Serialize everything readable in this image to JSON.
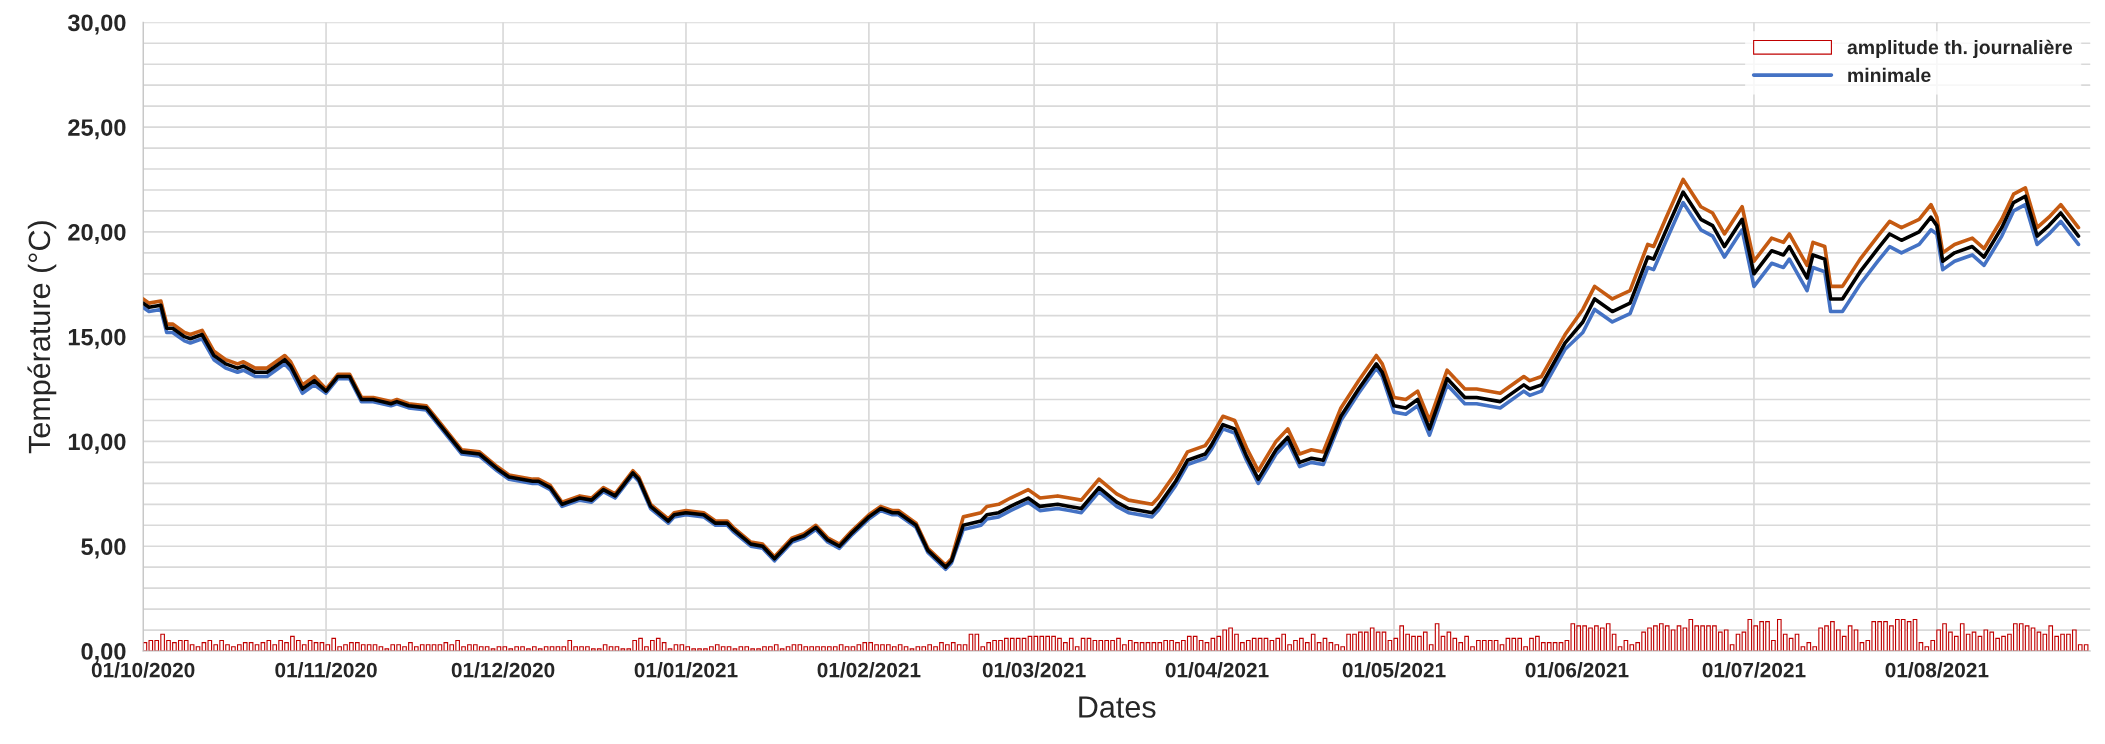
{
  "chart_data": {
    "type": "line",
    "xlabel": "Dates",
    "ylabel": "Température (°C)",
    "xlim": [
      "2020-10-01",
      "2021-08-27"
    ],
    "xticks": [
      {
        "value": "2020-10-01",
        "label": "01/10/2020"
      },
      {
        "value": "2020-11-01",
        "label": "01/11/2020"
      },
      {
        "value": "2020-12-01",
        "label": "01/12/2020"
      },
      {
        "value": "2021-01-01",
        "label": "01/01/2021"
      },
      {
        "value": "2021-02-01",
        "label": "01/02/2021"
      },
      {
        "value": "2021-03-01",
        "label": "01/03/2021"
      },
      {
        "value": "2021-04-01",
        "label": "01/04/2021"
      },
      {
        "value": "2021-05-01",
        "label": "01/05/2021"
      },
      {
        "value": "2021-06-01",
        "label": "01/06/2021"
      },
      {
        "value": "2021-07-01",
        "label": "01/07/2021"
      },
      {
        "value": "2021-08-01",
        "label": "01/08/2021"
      }
    ],
    "ylim": [
      0,
      30
    ],
    "yticks": [
      {
        "value": 0,
        "label": "0,00"
      },
      {
        "value": 1,
        "label": null
      },
      {
        "value": 2,
        "label": null
      },
      {
        "value": 3,
        "label": null
      },
      {
        "value": 4,
        "label": null
      },
      {
        "value": 5,
        "label": "5,00"
      },
      {
        "value": 6,
        "label": null
      },
      {
        "value": 7,
        "label": null
      },
      {
        "value": 8,
        "label": null
      },
      {
        "value": 9,
        "label": null
      },
      {
        "value": 10,
        "label": "10,00"
      },
      {
        "value": 11,
        "label": null
      },
      {
        "value": 12,
        "label": null
      },
      {
        "value": 13,
        "label": null
      },
      {
        "value": 14,
        "label": null
      },
      {
        "value": 15,
        "label": "15,00"
      },
      {
        "value": 16,
        "label": null
      },
      {
        "value": 17,
        "label": null
      },
      {
        "value": 18,
        "label": null
      },
      {
        "value": 19,
        "label": null
      },
      {
        "value": 20,
        "label": "20,00"
      },
      {
        "value": 21,
        "label": null
      },
      {
        "value": 22,
        "label": null
      },
      {
        "value": 23,
        "label": null
      },
      {
        "value": 24,
        "label": null
      },
      {
        "value": 25,
        "label": "25,00"
      },
      {
        "value": 26,
        "label": null
      },
      {
        "value": 27,
        "label": null
      },
      {
        "value": 28,
        "label": null
      },
      {
        "value": 29,
        "label": null
      },
      {
        "value": 30,
        "label": "30,00"
      }
    ],
    "grid": true,
    "legend": "top right",
    "series": [
      {
        "name": "amplitude th. journalière",
        "type": "bar",
        "color": "#c00000",
        "x": [
          "2020-10-01",
          "2020-10-02",
          "2020-10-03",
          "2020-10-04",
          "2020-10-05",
          "2020-10-06",
          "2020-10-07",
          "2020-10-08",
          "2020-10-09",
          "2020-10-10",
          "2020-10-11",
          "2020-10-12",
          "2020-10-13",
          "2020-10-14",
          "2020-10-15",
          "2020-10-16",
          "2020-10-17",
          "2020-10-18",
          "2020-10-19",
          "2020-10-20",
          "2020-10-21",
          "2020-10-22",
          "2020-10-23",
          "2020-10-24",
          "2020-10-25",
          "2020-10-26",
          "2020-10-27",
          "2020-10-28",
          "2020-10-29",
          "2020-10-30",
          "2020-10-31",
          "2020-11-01",
          "2020-11-02",
          "2020-11-03",
          "2020-11-04",
          "2020-11-05",
          "2020-11-06",
          "2020-11-07",
          "2020-11-08",
          "2020-11-09",
          "2020-11-10",
          "2020-11-11",
          "2020-11-12",
          "2020-11-13",
          "2020-11-14",
          "2020-11-15",
          "2020-11-16",
          "2020-11-17",
          "2020-11-18",
          "2020-11-19",
          "2020-11-20",
          "2020-11-21",
          "2020-11-22",
          "2020-11-23",
          "2020-11-24",
          "2020-11-25",
          "2020-11-26",
          "2020-11-27",
          "2020-11-28",
          "2020-11-29",
          "2020-11-30",
          "2020-12-01",
          "2020-12-02",
          "2020-12-03",
          "2020-12-04",
          "2020-12-05",
          "2020-12-06",
          "2020-12-07",
          "2020-12-08",
          "2020-12-09",
          "2020-12-10",
          "2020-12-11",
          "2020-12-12",
          "2020-12-13",
          "2020-12-14",
          "2020-12-15",
          "2020-12-16",
          "2020-12-17",
          "2020-12-18",
          "2020-12-19",
          "2020-12-20",
          "2020-12-21",
          "2020-12-22",
          "2020-12-23",
          "2020-12-24",
          "2020-12-25",
          "2020-12-26",
          "2020-12-27",
          "2020-12-28",
          "2020-12-29",
          "2020-12-30",
          "2020-12-31",
          "2021-01-01",
          "2021-01-02",
          "2021-01-03",
          "2021-01-04",
          "2021-01-05",
          "2021-01-06",
          "2021-01-07",
          "2021-01-08",
          "2021-01-09",
          "2021-01-10",
          "2021-01-11",
          "2021-01-12",
          "2021-01-13",
          "2021-01-14",
          "2021-01-15",
          "2021-01-16",
          "2021-01-17",
          "2021-01-18",
          "2021-01-19",
          "2021-01-20",
          "2021-01-21",
          "2021-01-22",
          "2021-01-23",
          "2021-01-24",
          "2021-01-25",
          "2021-01-26",
          "2021-01-27",
          "2021-01-28",
          "2021-01-29",
          "2021-01-30",
          "2021-01-31",
          "2021-02-01",
          "2021-02-02",
          "2021-02-03",
          "2021-02-04",
          "2021-02-05",
          "2021-02-06",
          "2021-02-07",
          "2021-02-08",
          "2021-02-09",
          "2021-02-10",
          "2021-02-11",
          "2021-02-12",
          "2021-02-13",
          "2021-02-14",
          "2021-02-15",
          "2021-02-16",
          "2021-02-17",
          "2021-02-18",
          "2021-02-19",
          "2021-02-20",
          "2021-02-21",
          "2021-02-22",
          "2021-02-23",
          "2021-02-24",
          "2021-02-25",
          "2021-02-26",
          "2021-02-27",
          "2021-02-28",
          "2021-03-01",
          "2021-03-02",
          "2021-03-03",
          "2021-03-04",
          "2021-03-05",
          "2021-03-06",
          "2021-03-07",
          "2021-03-08",
          "2021-03-09",
          "2021-03-10",
          "2021-03-11",
          "2021-03-12",
          "2021-03-13",
          "2021-03-14",
          "2021-03-15",
          "2021-03-16",
          "2021-03-17",
          "2021-03-18",
          "2021-03-19",
          "2021-03-20",
          "2021-03-21",
          "2021-03-22",
          "2021-03-23",
          "2021-03-24",
          "2021-03-25",
          "2021-03-26",
          "2021-03-27",
          "2021-03-28",
          "2021-03-29",
          "2021-03-30",
          "2021-03-31",
          "2021-04-01",
          "2021-04-02",
          "2021-04-03",
          "2021-04-04",
          "2021-04-05",
          "2021-04-06",
          "2021-04-07",
          "2021-04-08",
          "2021-04-09",
          "2021-04-10",
          "2021-04-11",
          "2021-04-12",
          "2021-04-13",
          "2021-04-14",
          "2021-04-15",
          "2021-04-16",
          "2021-04-17",
          "2021-04-18",
          "2021-04-19",
          "2021-04-20",
          "2021-04-21",
          "2021-04-22",
          "2021-04-23",
          "2021-04-24",
          "2021-04-25",
          "2021-04-26",
          "2021-04-27",
          "2021-04-28",
          "2021-04-29",
          "2021-04-30",
          "2021-05-01",
          "2021-05-02",
          "2021-05-03",
          "2021-05-04",
          "2021-05-05",
          "2021-05-06",
          "2021-05-07",
          "2021-05-08",
          "2021-05-09",
          "2021-05-10",
          "2021-05-11",
          "2021-05-12",
          "2021-05-13",
          "2021-05-14",
          "2021-05-15",
          "2021-05-16",
          "2021-05-17",
          "2021-05-18",
          "2021-05-19",
          "2021-05-20",
          "2021-05-21",
          "2021-05-22",
          "2021-05-23",
          "2021-05-24",
          "2021-05-25",
          "2021-05-26",
          "2021-05-27",
          "2021-05-28",
          "2021-05-29",
          "2021-05-30",
          "2021-05-31",
          "2021-06-01",
          "2021-06-02",
          "2021-06-03",
          "2021-06-04",
          "2021-06-05",
          "2021-06-06",
          "2021-06-07",
          "2021-06-08",
          "2021-06-09",
          "2021-06-10",
          "2021-06-11",
          "2021-06-12",
          "2021-06-13",
          "2021-06-14",
          "2021-06-15",
          "2021-06-16",
          "2021-06-17",
          "2021-06-18",
          "2021-06-19",
          "2021-06-20",
          "2021-06-21",
          "2021-06-22",
          "2021-06-23",
          "2021-06-24",
          "2021-06-25",
          "2021-06-26",
          "2021-06-27",
          "2021-06-28",
          "2021-06-29",
          "2021-06-30",
          "2021-07-01",
          "2021-07-02",
          "2021-07-03",
          "2021-07-04",
          "2021-07-05",
          "2021-07-06",
          "2021-07-07",
          "2021-07-08",
          "2021-07-09",
          "2021-07-10",
          "2021-07-11",
          "2021-07-12",
          "2021-07-13",
          "2021-07-14",
          "2021-07-15",
          "2021-07-16",
          "2021-07-17",
          "2021-07-18",
          "2021-07-19",
          "2021-07-20",
          "2021-07-21",
          "2021-07-22",
          "2021-07-23",
          "2021-07-24",
          "2021-07-25",
          "2021-07-26",
          "2021-07-27",
          "2021-07-28",
          "2021-07-29",
          "2021-07-30",
          "2021-07-31",
          "2021-08-01",
          "2021-08-02",
          "2021-08-03",
          "2021-08-04",
          "2021-08-05",
          "2021-08-06",
          "2021-08-07",
          "2021-08-08",
          "2021-08-09",
          "2021-08-10",
          "2021-08-11",
          "2021-08-12",
          "2021-08-13",
          "2021-08-14",
          "2021-08-15",
          "2021-08-16",
          "2021-08-17",
          "2021-08-18",
          "2021-08-19",
          "2021-08-20",
          "2021-08-21",
          "2021-08-22",
          "2021-08-23",
          "2021-08-24",
          "2021-08-25",
          "2021-08-26"
        ],
        "values": [
          0.4,
          0.5,
          0.5,
          0.8,
          0.5,
          0.4,
          0.5,
          0.5,
          0.3,
          0.2,
          0.4,
          0.5,
          0.3,
          0.5,
          0.3,
          0.2,
          0.3,
          0.4,
          0.4,
          0.3,
          0.4,
          0.5,
          0.3,
          0.5,
          0.4,
          0.7,
          0.5,
          0.3,
          0.5,
          0.4,
          0.4,
          0.3,
          0.6,
          0.2,
          0.3,
          0.4,
          0.4,
          0.3,
          0.3,
          0.3,
          0.2,
          0.1,
          0.3,
          0.3,
          0.2,
          0.4,
          0.2,
          0.3,
          0.3,
          0.3,
          0.3,
          0.4,
          0.3,
          0.5,
          0.2,
          0.3,
          0.3,
          0.2,
          0.2,
          0.1,
          0.2,
          0.2,
          0.1,
          0.2,
          0.2,
          0.1,
          0.2,
          0.1,
          0.2,
          0.2,
          0.2,
          0.2,
          0.5,
          0.2,
          0.2,
          0.2,
          0.1,
          0.1,
          0.3,
          0.2,
          0.2,
          0.1,
          0.1,
          0.5,
          0.6,
          0.2,
          0.5,
          0.6,
          0.4,
          0.1,
          0.3,
          0.3,
          0.2,
          0.1,
          0.1,
          0.1,
          0.2,
          0.3,
          0.2,
          0.2,
          0.1,
          0.2,
          0.2,
          0.1,
          0.1,
          0.2,
          0.2,
          0.3,
          0.1,
          0.2,
          0.3,
          0.3,
          0.2,
          0.2,
          0.2,
          0.2,
          0.2,
          0.2,
          0.3,
          0.2,
          0.2,
          0.3,
          0.4,
          0.4,
          0.3,
          0.3,
          0.3,
          0.2,
          0.3,
          0.2,
          0.1,
          0.2,
          0.2,
          0.3,
          0.2,
          0.4,
          0.3,
          0.4,
          0.3,
          0.3,
          0.8,
          0.8,
          0.2,
          0.4,
          0.5,
          0.5,
          0.6,
          0.6,
          0.6,
          0.6,
          0.7,
          0.7,
          0.7,
          0.7,
          0.7,
          0.6,
          0.4,
          0.6,
          0.2,
          0.6,
          0.6,
          0.5,
          0.5,
          0.5,
          0.5,
          0.6,
          0.3,
          0.5,
          0.4,
          0.4,
          0.4,
          0.4,
          0.4,
          0.5,
          0.5,
          0.4,
          0.5,
          0.7,
          0.7,
          0.5,
          0.4,
          0.6,
          0.7,
          1.0,
          1.1,
          0.8,
          0.4,
          0.5,
          0.6,
          0.6,
          0.6,
          0.5,
          0.6,
          0.8,
          0.3,
          0.5,
          0.6,
          0.4,
          0.8,
          0.4,
          0.6,
          0.4,
          0.3,
          0.2,
          0.8,
          0.8,
          0.9,
          0.9,
          1.1,
          0.9,
          0.9,
          0.5,
          0.6,
          1.2,
          0.8,
          0.7,
          0.7,
          0.9,
          0.3,
          1.3,
          0.7,
          0.9,
          0.6,
          0.4,
          0.7,
          0.2,
          0.5,
          0.5,
          0.5,
          0.5,
          0.3,
          0.6,
          0.6,
          0.6,
          0.2,
          0.6,
          0.7,
          0.4,
          0.4,
          0.4,
          0.4,
          0.5,
          1.3,
          1.2,
          1.2,
          1.1,
          1.2,
          1.1,
          1.3,
          0.8,
          0.2,
          0.5,
          0.3,
          0.4,
          0.9,
          1.1,
          1.2,
          1.3,
          1.2,
          1.0,
          1.2,
          1.1,
          1.5,
          1.2,
          1.2,
          1.2,
          1.2,
          0.9,
          1.0,
          0.3,
          0.8,
          0.9,
          1.5,
          1.2,
          1.4,
          1.4,
          0.5,
          1.5,
          0.8,
          0.6,
          0.8,
          0.2,
          0.4,
          0.2,
          1.1,
          1.2,
          1.4,
          1.0,
          0.7,
          1.2,
          1.0,
          0.4,
          0.5,
          1.4,
          1.4,
          1.4,
          1.2,
          1.5,
          1.5,
          1.4,
          1.5,
          0.4,
          0.2,
          0.5,
          1.0,
          1.3,
          0.9,
          0.7,
          1.3,
          0.8,
          0.9,
          0.7,
          1.0,
          0.9,
          0.6,
          0.7,
          0.8,
          1.3,
          1.3,
          1.2,
          1.1,
          0.9,
          0.8,
          1.2,
          0.7,
          0.8,
          0.8,
          1.0,
          0.3,
          0.3
        ]
      },
      {
        "color": "#c55a11",
        "x": [
          "2020-10-01",
          "2020-10-02",
          "2020-10-04",
          "2020-10-05",
          "2020-10-06",
          "2020-10-08",
          "2020-10-09",
          "2020-10-11",
          "2020-10-13",
          "2020-10-15",
          "2020-10-17",
          "2020-10-18",
          "2020-10-20",
          "2020-10-22",
          "2020-10-25",
          "2020-10-26",
          "2020-10-28",
          "2020-10-30",
          "2020-11-01",
          "2020-11-03",
          "2020-11-05",
          "2020-11-07",
          "2020-11-09",
          "2020-11-12",
          "2020-11-13",
          "2020-11-15",
          "2020-11-18",
          "2020-11-20",
          "2020-11-24",
          "2020-11-27",
          "2020-11-30",
          "2020-12-02",
          "2020-12-06",
          "2020-12-07",
          "2020-12-09",
          "2020-12-11",
          "2020-12-14",
          "2020-12-16",
          "2020-12-18",
          "2020-12-20",
          "2020-12-23",
          "2020-12-24",
          "2020-12-26",
          "2020-12-29",
          "2020-12-30",
          "2021-01-01",
          "2021-01-04",
          "2021-01-06",
          "2021-01-08",
          "2021-01-09",
          "2021-01-12",
          "2021-01-14",
          "2021-01-16",
          "2021-01-19",
          "2021-01-21",
          "2021-01-23",
          "2021-01-25",
          "2021-01-27",
          "2021-01-29",
          "2021-02-01",
          "2021-02-03",
          "2021-02-05",
          "2021-02-06",
          "2021-02-09",
          "2021-02-11",
          "2021-02-14",
          "2021-02-15",
          "2021-02-17",
          "2021-02-20",
          "2021-02-21",
          "2021-02-23",
          "2021-02-25",
          "2021-02-28",
          "2021-03-02",
          "2021-03-05",
          "2021-03-07",
          "2021-03-09",
          "2021-03-12",
          "2021-03-15",
          "2021-03-17",
          "2021-03-21",
          "2021-03-22",
          "2021-03-25",
          "2021-03-27",
          "2021-03-30",
          "2021-03-31",
          "2021-04-02",
          "2021-04-04",
          "2021-04-06",
          "2021-04-08",
          "2021-04-11",
          "2021-04-13",
          "2021-04-15",
          "2021-04-17",
          "2021-04-19",
          "2021-04-22",
          "2021-04-25",
          "2021-04-28",
          "2021-04-29",
          "2021-05-01",
          "2021-05-03",
          "2021-05-05",
          "2021-05-07",
          "2021-05-10",
          "2021-05-13",
          "2021-05-15",
          "2021-05-19",
          "2021-05-23",
          "2021-05-24",
          "2021-05-26",
          "2021-05-30",
          "2021-06-02",
          "2021-06-04",
          "2021-06-07",
          "2021-06-10",
          "2021-06-13",
          "2021-06-14",
          "2021-06-16",
          "2021-06-19",
          "2021-06-22",
          "2021-06-24",
          "2021-06-26",
          "2021-06-29",
          "2021-07-01",
          "2021-07-04",
          "2021-07-06",
          "2021-07-07",
          "2021-07-10",
          "2021-07-11",
          "2021-07-13",
          "2021-07-14",
          "2021-07-16",
          "2021-07-19",
          "2021-07-22",
          "2021-07-24",
          "2021-07-26",
          "2021-07-29",
          "2021-07-31",
          "2021-08-01",
          "2021-08-02",
          "2021-08-04",
          "2021-08-07",
          "2021-08-09",
          "2021-08-12",
          "2021-08-14",
          "2021-08-16",
          "2021-08-18",
          "2021-08-20",
          "2021-08-22",
          "2021-08-25"
        ],
        "values": [
          16.8,
          16.6,
          16.7,
          15.6,
          15.6,
          15.2,
          15.1,
          15.3,
          14.3,
          13.9,
          13.7,
          13.8,
          13.5,
          13.5,
          14.1,
          13.8,
          12.7,
          13.1,
          12.5,
          13.2,
          13.2,
          12.1,
          12.1,
          11.9,
          12.0,
          11.8,
          11.7,
          11.0,
          9.6,
          9.5,
          8.8,
          8.4,
          8.2,
          8.2,
          7.9,
          7.1,
          7.4,
          7.3,
          7.8,
          7.5,
          8.6,
          8.3,
          7.0,
          6.3,
          6.6,
          6.7,
          6.6,
          6.2,
          6.2,
          5.9,
          5.2,
          5.1,
          4.5,
          5.4,
          5.6,
          6.0,
          5.4,
          5.1,
          5.7,
          6.5,
          6.9,
          6.7,
          6.7,
          6.1,
          4.9,
          4.1,
          4.4,
          6.4,
          6.6,
          6.9,
          7.0,
          7.3,
          7.7,
          7.3,
          7.4,
          7.3,
          7.2,
          8.2,
          7.5,
          7.2,
          7.0,
          7.3,
          8.5,
          9.5,
          9.8,
          10.2,
          11.2,
          11.0,
          9.7,
          8.6,
          10.0,
          10.6,
          9.4,
          9.6,
          9.5,
          11.6,
          12.9,
          14.1,
          13.7,
          12.1,
          12.0,
          12.4,
          11.0,
          13.4,
          12.5,
          12.5,
          12.3,
          13.1,
          12.9,
          13.1,
          15.1,
          16.3,
          17.4,
          16.8,
          17.2,
          19.4,
          19.3,
          20.6,
          22.5,
          21.2,
          20.9,
          19.9,
          21.2,
          18.6,
          19.7,
          19.5,
          19.9,
          18.4,
          19.5,
          19.3,
          17.4,
          17.4,
          18.7,
          19.8,
          20.5,
          20.2,
          20.6,
          21.3,
          20.7,
          19.0,
          19.4,
          19.7,
          19.2,
          20.6,
          21.8,
          22.1,
          20.2,
          20.7,
          21.3,
          20.2
        ]
      },
      {
        "name": "minimale",
        "color": "#4472c4",
        "x": [
          "2020-10-01",
          "2020-10-02",
          "2020-10-04",
          "2020-10-05",
          "2020-10-06",
          "2020-10-08",
          "2020-10-09",
          "2020-10-11",
          "2020-10-13",
          "2020-10-15",
          "2020-10-17",
          "2020-10-18",
          "2020-10-20",
          "2020-10-22",
          "2020-10-25",
          "2020-10-26",
          "2020-10-28",
          "2020-10-30",
          "2020-11-01",
          "2020-11-03",
          "2020-11-05",
          "2020-11-07",
          "2020-11-09",
          "2020-11-12",
          "2020-11-13",
          "2020-11-15",
          "2020-11-18",
          "2020-11-20",
          "2020-11-24",
          "2020-11-27",
          "2020-11-30",
          "2020-12-02",
          "2020-12-06",
          "2020-12-07",
          "2020-12-09",
          "2020-12-11",
          "2020-12-14",
          "2020-12-16",
          "2020-12-18",
          "2020-12-20",
          "2020-12-23",
          "2020-12-24",
          "2020-12-26",
          "2020-12-29",
          "2020-12-30",
          "2021-01-01",
          "2021-01-04",
          "2021-01-06",
          "2021-01-08",
          "2021-01-09",
          "2021-01-12",
          "2021-01-14",
          "2021-01-16",
          "2021-01-19",
          "2021-01-21",
          "2021-01-23",
          "2021-01-25",
          "2021-01-27",
          "2021-01-29",
          "2021-02-01",
          "2021-02-03",
          "2021-02-05",
          "2021-02-06",
          "2021-02-09",
          "2021-02-11",
          "2021-02-14",
          "2021-02-15",
          "2021-02-17",
          "2021-02-20",
          "2021-02-21",
          "2021-02-23",
          "2021-02-25",
          "2021-02-28",
          "2021-03-02",
          "2021-03-05",
          "2021-03-07",
          "2021-03-09",
          "2021-03-12",
          "2021-03-15",
          "2021-03-17",
          "2021-03-21",
          "2021-03-22",
          "2021-03-25",
          "2021-03-27",
          "2021-03-30",
          "2021-03-31",
          "2021-04-02",
          "2021-04-04",
          "2021-04-06",
          "2021-04-08",
          "2021-04-11",
          "2021-04-13",
          "2021-04-15",
          "2021-04-17",
          "2021-04-19",
          "2021-04-22",
          "2021-04-25",
          "2021-04-28",
          "2021-04-29",
          "2021-05-01",
          "2021-05-03",
          "2021-05-05",
          "2021-05-07",
          "2021-05-10",
          "2021-05-13",
          "2021-05-15",
          "2021-05-19",
          "2021-05-23",
          "2021-05-24",
          "2021-05-26",
          "2021-05-30",
          "2021-06-02",
          "2021-06-04",
          "2021-06-07",
          "2021-06-10",
          "2021-06-13",
          "2021-06-14",
          "2021-06-16",
          "2021-06-19",
          "2021-06-22",
          "2021-06-24",
          "2021-06-26",
          "2021-06-29",
          "2021-07-01",
          "2021-07-04",
          "2021-07-06",
          "2021-07-07",
          "2021-07-10",
          "2021-07-11",
          "2021-07-13",
          "2021-07-14",
          "2021-07-16",
          "2021-07-19",
          "2021-07-22",
          "2021-07-24",
          "2021-07-26",
          "2021-07-29",
          "2021-07-31",
          "2021-08-01",
          "2021-08-02",
          "2021-08-04",
          "2021-08-07",
          "2021-08-09",
          "2021-08-12",
          "2021-08-14",
          "2021-08-16",
          "2021-08-18",
          "2021-08-20",
          "2021-08-22",
          "2021-08-25"
        ],
        "values": [
          16.4,
          16.2,
          16.3,
          15.2,
          15.2,
          14.8,
          14.7,
          14.9,
          13.9,
          13.5,
          13.3,
          13.4,
          13.1,
          13.1,
          13.7,
          13.4,
          12.3,
          12.7,
          12.3,
          13.0,
          13.0,
          11.9,
          11.9,
          11.7,
          11.8,
          11.6,
          11.5,
          10.8,
          9.4,
          9.3,
          8.6,
          8.2,
          8.0,
          8.0,
          7.7,
          6.9,
          7.2,
          7.1,
          7.6,
          7.3,
          8.4,
          8.1,
          6.8,
          6.1,
          6.4,
          6.5,
          6.4,
          6.0,
          6.0,
          5.7,
          5.0,
          4.9,
          4.3,
          5.2,
          5.4,
          5.8,
          5.2,
          4.9,
          5.5,
          6.3,
          6.7,
          6.5,
          6.5,
          5.9,
          4.7,
          3.9,
          4.2,
          5.8,
          6.0,
          6.3,
          6.4,
          6.7,
          7.1,
          6.7,
          6.8,
          6.7,
          6.6,
          7.6,
          6.9,
          6.6,
          6.4,
          6.7,
          7.9,
          8.9,
          9.2,
          9.6,
          10.6,
          10.4,
          9.1,
          8.0,
          9.4,
          10.0,
          8.8,
          9.0,
          8.9,
          11.0,
          12.3,
          13.5,
          13.1,
          11.4,
          11.3,
          11.7,
          10.3,
          12.7,
          11.8,
          11.8,
          11.6,
          12.4,
          12.2,
          12.4,
          14.4,
          15.2,
          16.3,
          15.7,
          16.1,
          18.3,
          18.2,
          19.5,
          21.4,
          20.1,
          19.8,
          18.8,
          20.1,
          17.4,
          18.5,
          18.3,
          18.7,
          17.2,
          18.3,
          18.1,
          16.2,
          16.2,
          17.5,
          18.6,
          19.3,
          19.0,
          19.4,
          20.1,
          19.9,
          18.2,
          18.6,
          18.9,
          18.4,
          19.8,
          21.0,
          21.3,
          19.4,
          19.9,
          20.5,
          19.4
        ]
      },
      {
        "color": "#000000",
        "x": [
          "2020-10-01",
          "2020-10-02",
          "2020-10-04",
          "2020-10-05",
          "2020-10-06",
          "2020-10-08",
          "2020-10-09",
          "2020-10-11",
          "2020-10-13",
          "2020-10-15",
          "2020-10-17",
          "2020-10-18",
          "2020-10-20",
          "2020-10-22",
          "2020-10-25",
          "2020-10-26",
          "2020-10-28",
          "2020-10-30",
          "2020-11-01",
          "2020-11-03",
          "2020-11-05",
          "2020-11-07",
          "2020-11-09",
          "2020-11-12",
          "2020-11-13",
          "2020-11-15",
          "2020-11-18",
          "2020-11-20",
          "2020-11-24",
          "2020-11-27",
          "2020-11-30",
          "2020-12-02",
          "2020-12-06",
          "2020-12-07",
          "2020-12-09",
          "2020-12-11",
          "2020-12-14",
          "2020-12-16",
          "2020-12-18",
          "2020-12-20",
          "2020-12-23",
          "2020-12-24",
          "2020-12-26",
          "2020-12-29",
          "2020-12-30",
          "2021-01-01",
          "2021-01-04",
          "2021-01-06",
          "2021-01-08",
          "2021-01-09",
          "2021-01-12",
          "2021-01-14",
          "2021-01-16",
          "2021-01-19",
          "2021-01-21",
          "2021-01-23",
          "2021-01-25",
          "2021-01-27",
          "2021-01-29",
          "2021-02-01",
          "2021-02-03",
          "2021-02-05",
          "2021-02-06",
          "2021-02-09",
          "2021-02-11",
          "2021-02-14",
          "2021-02-15",
          "2021-02-17",
          "2021-02-20",
          "2021-02-21",
          "2021-02-23",
          "2021-02-25",
          "2021-02-28",
          "2021-03-02",
          "2021-03-05",
          "2021-03-07",
          "2021-03-09",
          "2021-03-12",
          "2021-03-15",
          "2021-03-17",
          "2021-03-21",
          "2021-03-22",
          "2021-03-25",
          "2021-03-27",
          "2021-03-30",
          "2021-03-31",
          "2021-04-02",
          "2021-04-04",
          "2021-04-06",
          "2021-04-08",
          "2021-04-11",
          "2021-04-13",
          "2021-04-15",
          "2021-04-17",
          "2021-04-19",
          "2021-04-22",
          "2021-04-25",
          "2021-04-28",
          "2021-04-29",
          "2021-05-01",
          "2021-05-03",
          "2021-05-05",
          "2021-05-07",
          "2021-05-10",
          "2021-05-13",
          "2021-05-15",
          "2021-05-19",
          "2021-05-23",
          "2021-05-24",
          "2021-05-26",
          "2021-05-30",
          "2021-06-02",
          "2021-06-04",
          "2021-06-07",
          "2021-06-10",
          "2021-06-13",
          "2021-06-14",
          "2021-06-16",
          "2021-06-19",
          "2021-06-22",
          "2021-06-24",
          "2021-06-26",
          "2021-06-29",
          "2021-07-01",
          "2021-07-04",
          "2021-07-06",
          "2021-07-07",
          "2021-07-10",
          "2021-07-11",
          "2021-07-13",
          "2021-07-14",
          "2021-07-16",
          "2021-07-19",
          "2021-07-22",
          "2021-07-24",
          "2021-07-26",
          "2021-07-29",
          "2021-07-31",
          "2021-08-01",
          "2021-08-02",
          "2021-08-04",
          "2021-08-07",
          "2021-08-09",
          "2021-08-12",
          "2021-08-14",
          "2021-08-16",
          "2021-08-18",
          "2021-08-20",
          "2021-08-22",
          "2021-08-25"
        ],
        "values": [
          16.6,
          16.4,
          16.5,
          15.4,
          15.4,
          15.0,
          14.9,
          15.1,
          14.1,
          13.7,
          13.5,
          13.6,
          13.3,
          13.3,
          13.9,
          13.6,
          12.5,
          12.9,
          12.4,
          13.1,
          13.1,
          12.0,
          12.0,
          11.8,
          11.9,
          11.7,
          11.6,
          10.9,
          9.5,
          9.4,
          8.7,
          8.3,
          8.1,
          8.1,
          7.8,
          7.0,
          7.3,
          7.2,
          7.7,
          7.4,
          8.5,
          8.2,
          6.9,
          6.2,
          6.5,
          6.6,
          6.5,
          6.1,
          6.1,
          5.8,
          5.1,
          5.0,
          4.4,
          5.3,
          5.5,
          5.9,
          5.3,
          5.0,
          5.6,
          6.4,
          6.8,
          6.6,
          6.6,
          6.0,
          4.8,
          4.0,
          4.3,
          6.0,
          6.2,
          6.5,
          6.6,
          6.9,
          7.3,
          6.9,
          7.0,
          6.9,
          6.8,
          7.8,
          7.1,
          6.8,
          6.6,
          6.9,
          8.1,
          9.1,
          9.4,
          9.8,
          10.8,
          10.6,
          9.3,
          8.2,
          9.6,
          10.2,
          9.0,
          9.2,
          9.1,
          11.2,
          12.5,
          13.7,
          13.3,
          11.7,
          11.6,
          12.0,
          10.6,
          13.0,
          12.1,
          12.1,
          11.9,
          12.7,
          12.5,
          12.7,
          14.7,
          15.7,
          16.8,
          16.2,
          16.6,
          18.8,
          18.7,
          20.0,
          21.9,
          20.6,
          20.3,
          19.3,
          20.6,
          18.0,
          19.1,
          18.9,
          19.3,
          17.8,
          18.9,
          18.7,
          16.8,
          16.8,
          18.1,
          19.2,
          19.9,
          19.6,
          20.0,
          20.7,
          20.3,
          18.6,
          19.0,
          19.3,
          18.8,
          20.2,
          21.4,
          21.7,
          19.8,
          20.3,
          20.9,
          19.8
        ]
      }
    ]
  }
}
